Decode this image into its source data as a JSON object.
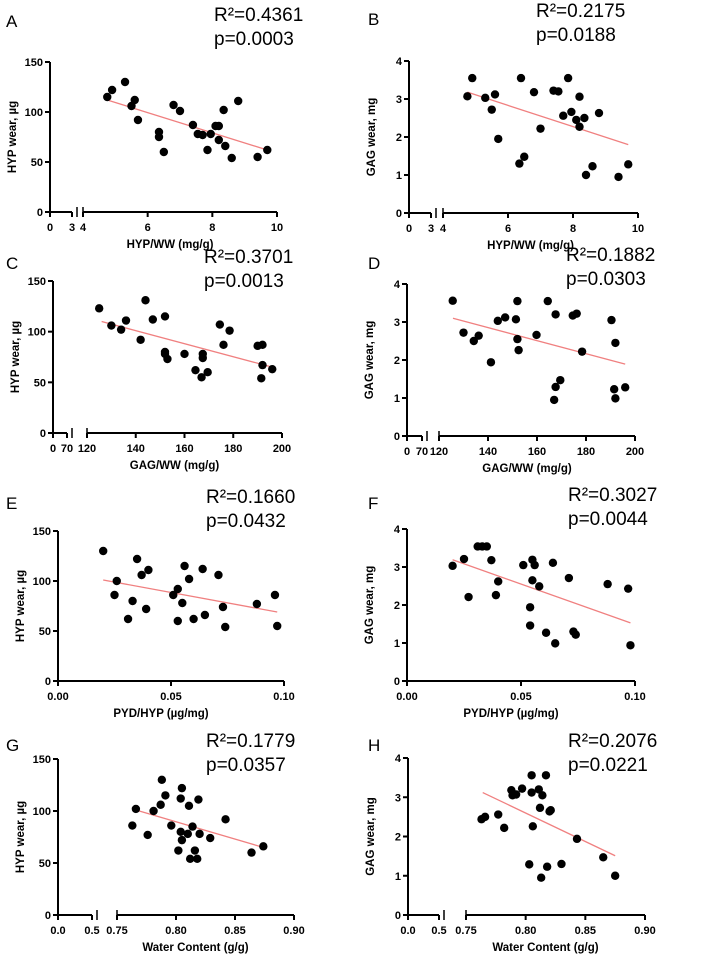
{
  "chart_data": [
    {
      "type": "scatter",
      "letter": "A",
      "r2": "R²=0.4361",
      "p": "p=0.0003",
      "xlabel": "HYP/WW (mg/g)",
      "ylabel": "HYP wear, µg",
      "xlim": [
        0,
        10
      ],
      "ylim": [
        0,
        150
      ],
      "xticks": [
        {
          "v": 0,
          "label": "0"
        },
        {
          "v": 3,
          "label": "3"
        },
        {
          "v": 4,
          "label": "4"
        },
        {
          "v": 6,
          "label": "6"
        },
        {
          "v": 8,
          "label": "8"
        },
        {
          "v": 10,
          "label": "10"
        }
      ],
      "yticks": [
        {
          "v": 0,
          "label": "0"
        },
        {
          "v": 50,
          "label": "50"
        },
        {
          "v": 100,
          "label": "100"
        },
        {
          "v": 150,
          "label": "150"
        }
      ],
      "points": [
        [
          4.75,
          115
        ],
        [
          4.9,
          122
        ],
        [
          5.3,
          130
        ],
        [
          5.5,
          106
        ],
        [
          5.6,
          112
        ],
        [
          5.7,
          92
        ],
        [
          6.35,
          80
        ],
        [
          6.35,
          75
        ],
        [
          6.5,
          60
        ],
        [
          6.8,
          107
        ],
        [
          7.0,
          101
        ],
        [
          7.4,
          87
        ],
        [
          7.55,
          78
        ],
        [
          7.7,
          77
        ],
        [
          7.85,
          62
        ],
        [
          7.95,
          78
        ],
        [
          8.1,
          86
        ],
        [
          8.2,
          86
        ],
        [
          8.2,
          72
        ],
        [
          8.35,
          102
        ],
        [
          8.4,
          66
        ],
        [
          8.6,
          54
        ],
        [
          8.8,
          111
        ],
        [
          9.4,
          55
        ],
        [
          9.7,
          62
        ]
      ],
      "fit": [
        [
          4.75,
          112
        ],
        [
          9.7,
          62
        ]
      ]
    },
    {
      "type": "scatter",
      "letter": "B",
      "r2": "R²=0.2175",
      "p": "p=0.0188",
      "xlabel": "HYP/WW (mg/g)",
      "ylabel": "GAG wear, mg",
      "xlim": [
        0,
        10
      ],
      "ylim": [
        0,
        4
      ],
      "xticks": [
        {
          "v": 0,
          "label": "0"
        },
        {
          "v": 3,
          "label": "3"
        },
        {
          "v": 4,
          "label": "4"
        },
        {
          "v": 6,
          "label": "6"
        },
        {
          "v": 8,
          "label": "8"
        },
        {
          "v": 10,
          "label": "10"
        }
      ],
      "yticks": [
        {
          "v": 0,
          "label": "0"
        },
        {
          "v": 1,
          "label": "1"
        },
        {
          "v": 2,
          "label": "2"
        },
        {
          "v": 3,
          "label": "3"
        },
        {
          "v": 4,
          "label": "4"
        }
      ],
      "points": [
        [
          4.75,
          3.07
        ],
        [
          4.9,
          3.55
        ],
        [
          5.3,
          3.03
        ],
        [
          5.5,
          2.72
        ],
        [
          5.6,
          3.12
        ],
        [
          5.7,
          1.95
        ],
        [
          6.35,
          1.3
        ],
        [
          6.4,
          3.55
        ],
        [
          6.5,
          1.48
        ],
        [
          6.8,
          3.18
        ],
        [
          7.0,
          2.22
        ],
        [
          7.4,
          3.22
        ],
        [
          7.55,
          3.2
        ],
        [
          7.7,
          2.56
        ],
        [
          7.85,
          3.55
        ],
        [
          7.95,
          2.66
        ],
        [
          8.1,
          2.45
        ],
        [
          8.2,
          3.06
        ],
        [
          8.2,
          2.27
        ],
        [
          8.35,
          2.5
        ],
        [
          8.4,
          1.0
        ],
        [
          8.6,
          1.23
        ],
        [
          8.8,
          2.63
        ],
        [
          9.4,
          0.95
        ],
        [
          9.7,
          1.28
        ]
      ],
      "fit": [
        [
          4.75,
          3.18
        ],
        [
          9.7,
          1.8
        ]
      ]
    },
    {
      "type": "scatter",
      "letter": "C",
      "r2": "R²=0.3701",
      "p": "p=0.0013",
      "xlabel": "GAG/WW (mg/g)",
      "ylabel": "HYP wear, µg",
      "xlim": [
        0,
        200
      ],
      "ylim": [
        0,
        150
      ],
      "xticks": [
        {
          "v": 0,
          "label": "0"
        },
        {
          "v": 70,
          "label": "70"
        },
        {
          "v": 120,
          "label": "120"
        },
        {
          "v": 140,
          "label": "140"
        },
        {
          "v": 160,
          "label": "160"
        },
        {
          "v": 180,
          "label": "180"
        },
        {
          "v": 200,
          "label": "200"
        }
      ],
      "yticks": [
        {
          "v": 0,
          "label": "0"
        },
        {
          "v": 50,
          "label": "50"
        },
        {
          "v": 100,
          "label": "100"
        },
        {
          "v": 150,
          "label": "150"
        }
      ],
      "points": [
        [
          125,
          123
        ],
        [
          130,
          106
        ],
        [
          134,
          102
        ],
        [
          136,
          111
        ],
        [
          142,
          92
        ],
        [
          144,
          131
        ],
        [
          147,
          112
        ],
        [
          152,
          115
        ],
        [
          152,
          80
        ],
        [
          152,
          78
        ],
        [
          153,
          73
        ],
        [
          160,
          78
        ],
        [
          164.5,
          62
        ],
        [
          167,
          55
        ],
        [
          167.5,
          78
        ],
        [
          167.5,
          74
        ],
        [
          169.5,
          60
        ],
        [
          174.5,
          107
        ],
        [
          176,
          87
        ],
        [
          178.5,
          101
        ],
        [
          190,
          86
        ],
        [
          192,
          87
        ],
        [
          192,
          67
        ],
        [
          191.5,
          54
        ],
        [
          196,
          63
        ]
      ],
      "fit": [
        [
          126,
          110
        ],
        [
          196,
          65
        ]
      ]
    },
    {
      "type": "scatter",
      "letter": "D",
      "r2": "R²=0.1882",
      "p": "p=0.0303",
      "xlabel": "GAG/WW (mg/g)",
      "ylabel": "GAG wear, mg",
      "xlim": [
        0,
        200
      ],
      "ylim": [
        0,
        4
      ],
      "xticks": [
        {
          "v": 0,
          "label": "0"
        },
        {
          "v": 70,
          "label": "70"
        },
        {
          "v": 120,
          "label": "120"
        },
        {
          "v": 140,
          "label": "140"
        },
        {
          "v": 160,
          "label": "160"
        },
        {
          "v": 180,
          "label": "180"
        },
        {
          "v": 200,
          "label": "200"
        }
      ],
      "yticks": [
        {
          "v": 0,
          "label": "0"
        },
        {
          "v": 1,
          "label": "1"
        },
        {
          "v": 2,
          "label": "2"
        },
        {
          "v": 3,
          "label": "3"
        },
        {
          "v": 4,
          "label": "4"
        }
      ],
      "points": [
        [
          125.6,
          3.56
        ],
        [
          130,
          2.72
        ],
        [
          134.2,
          2.5
        ],
        [
          136.2,
          2.64
        ],
        [
          141.2,
          1.94
        ],
        [
          144,
          3.03
        ],
        [
          147,
          3.12
        ],
        [
          151.4,
          3.07
        ],
        [
          152,
          3.55
        ],
        [
          152,
          2.55
        ],
        [
          152.5,
          2.26
        ],
        [
          159.8,
          2.66
        ],
        [
          164.4,
          3.55
        ],
        [
          167,
          0.95
        ],
        [
          167.6,
          1.29
        ],
        [
          167.6,
          3.2
        ],
        [
          169.5,
          1.47
        ],
        [
          174.6,
          3.17
        ],
        [
          176.2,
          3.22
        ],
        [
          178.4,
          2.22
        ],
        [
          190.4,
          3.05
        ],
        [
          191.5,
          1.23
        ],
        [
          192,
          2.45
        ],
        [
          192,
          0.99
        ],
        [
          196,
          1.28
        ]
      ],
      "fit": [
        [
          125.7,
          3.1
        ],
        [
          196,
          1.89
        ]
      ]
    },
    {
      "type": "scatter",
      "letter": "E",
      "r2": "R²=0.1660",
      "p": "p=0.0432",
      "xlabel": "PYD/HYP (µg/mg)",
      "ylabel": "HYP wear, µg",
      "xlim": [
        0,
        0.1
      ],
      "ylim": [
        0,
        150
      ],
      "xticks": [
        {
          "v": 0,
          "label": "0.00"
        },
        {
          "v": 0.05,
          "label": "0.05"
        },
        {
          "v": 0.1,
          "label": "0.10"
        }
      ],
      "yticks": [
        {
          "v": 0,
          "label": "0"
        },
        {
          "v": 50,
          "label": "50"
        },
        {
          "v": 100,
          "label": "100"
        },
        {
          "v": 150,
          "label": "150"
        }
      ],
      "points": [
        [
          0.02,
          130
        ],
        [
          0.025,
          86
        ],
        [
          0.026,
          100
        ],
        [
          0.031,
          62
        ],
        [
          0.033,
          80
        ],
        [
          0.035,
          122
        ],
        [
          0.037,
          106
        ],
        [
          0.039,
          72
        ],
        [
          0.04,
          111
        ],
        [
          0.051,
          86
        ],
        [
          0.053,
          92
        ],
        [
          0.053,
          60
        ],
        [
          0.055,
          78
        ],
        [
          0.056,
          115
        ],
        [
          0.058,
          102
        ],
        [
          0.06,
          62
        ],
        [
          0.064,
          112
        ],
        [
          0.065,
          66
        ],
        [
          0.071,
          106
        ],
        [
          0.073,
          74
        ],
        [
          0.074,
          54
        ],
        [
          0.088,
          77
        ],
        [
          0.096,
          86
        ],
        [
          0.097,
          55
        ]
      ],
      "fit": [
        [
          0.02,
          101
        ],
        [
          0.097,
          69
        ]
      ]
    },
    {
      "type": "scatter",
      "letter": "F",
      "r2": "R²=0.3027",
      "p": "p=0.0044",
      "xlabel": "PYD/HYP (µg/mg)",
      "ylabel": "GAG wear, mg",
      "xlim": [
        0,
        0.1
      ],
      "ylim": [
        0,
        4
      ],
      "xticks": [
        {
          "v": 0,
          "label": "0.00"
        },
        {
          "v": 0.05,
          "label": "0.05"
        },
        {
          "v": 0.1,
          "label": "0.10"
        }
      ],
      "yticks": [
        {
          "v": 0,
          "label": "0"
        },
        {
          "v": 1,
          "label": "1"
        },
        {
          "v": 2,
          "label": "2"
        },
        {
          "v": 3,
          "label": "3"
        },
        {
          "v": 4,
          "label": "4"
        }
      ],
      "points": [
        [
          0.02,
          3.03
        ],
        [
          0.025,
          3.21
        ],
        [
          0.027,
          2.21
        ],
        [
          0.031,
          3.54
        ],
        [
          0.033,
          3.54
        ],
        [
          0.035,
          3.54
        ],
        [
          0.037,
          3.18
        ],
        [
          0.039,
          2.26
        ],
        [
          0.04,
          2.62
        ],
        [
          0.051,
          3.05
        ],
        [
          0.054,
          1.94
        ],
        [
          0.054,
          1.46
        ],
        [
          0.055,
          3.19
        ],
        [
          0.055,
          2.65
        ],
        [
          0.056,
          3.05
        ],
        [
          0.058,
          2.49
        ],
        [
          0.061,
          1.27
        ],
        [
          0.064,
          3.11
        ],
        [
          0.065,
          0.99
        ],
        [
          0.071,
          2.71
        ],
        [
          0.073,
          1.3
        ],
        [
          0.074,
          1.22
        ],
        [
          0.088,
          2.55
        ],
        [
          0.097,
          2.43
        ],
        [
          0.098,
          0.94
        ]
      ],
      "fit": [
        [
          0.02,
          3.19
        ],
        [
          0.098,
          1.53
        ]
      ]
    },
    {
      "type": "scatter",
      "letter": "G",
      "r2": "R²=0.1779",
      "p": "p=0.0357",
      "xlabel": "Water Content (g/g)",
      "ylabel": "HYP wear, µg",
      "xlim": [
        0,
        0.9
      ],
      "ylim": [
        0,
        150
      ],
      "xticks": [
        {
          "v": 0,
          "label": "0.0"
        },
        {
          "v": 0.5,
          "label": "0.5"
        },
        {
          "v": 0.75,
          "label": "0.75"
        },
        {
          "v": 0.8,
          "label": "0.80"
        },
        {
          "v": 0.85,
          "label": "0.85"
        },
        {
          "v": 0.9,
          "label": "0.90"
        }
      ],
      "yticks": [
        {
          "v": 0,
          "label": "0"
        },
        {
          "v": 50,
          "label": "50"
        },
        {
          "v": 100,
          "label": "100"
        },
        {
          "v": 150,
          "label": "150"
        }
      ],
      "points": [
        [
          0.763,
          86
        ],
        [
          0.766,
          102
        ],
        [
          0.776,
          77
        ],
        [
          0.781,
          100
        ],
        [
          0.787,
          106
        ],
        [
          0.788,
          130
        ],
        [
          0.791,
          115
        ],
        [
          0.796,
          86
        ],
        [
          0.802,
          62
        ],
        [
          0.804,
          80
        ],
        [
          0.805,
          122
        ],
        [
          0.804,
          112
        ],
        [
          0.805,
          72
        ],
        [
          0.81,
          78
        ],
        [
          0.811,
          105
        ],
        [
          0.812,
          54
        ],
        [
          0.814,
          85
        ],
        [
          0.816,
          62
        ],
        [
          0.818,
          54
        ],
        [
          0.819,
          111
        ],
        [
          0.82,
          78
        ],
        [
          0.829,
          74
        ],
        [
          0.842,
          92
        ],
        [
          0.864,
          60
        ],
        [
          0.874,
          66
        ]
      ],
      "fit": [
        [
          0.766,
          101
        ],
        [
          0.877,
          64
        ]
      ]
    },
    {
      "type": "scatter",
      "letter": "H",
      "r2": "R²=0.2076",
      "p": "p=0.0221",
      "xlabel": "Water Content (g/g)",
      "ylabel": "GAG wear, mg",
      "xlim": [
        0,
        0.9
      ],
      "ylim": [
        0,
        4
      ],
      "xticks": [
        {
          "v": 0,
          "label": "0.0"
        },
        {
          "v": 0.5,
          "label": "0.5"
        },
        {
          "v": 0.75,
          "label": "0.75"
        },
        {
          "v": 0.8,
          "label": "0.80"
        },
        {
          "v": 0.85,
          "label": "0.85"
        },
        {
          "v": 0.9,
          "label": "0.90"
        }
      ],
      "yticks": [
        {
          "v": 0,
          "label": "0"
        },
        {
          "v": 1,
          "label": "1"
        },
        {
          "v": 2,
          "label": "2"
        },
        {
          "v": 3,
          "label": "3"
        },
        {
          "v": 4,
          "label": "4"
        }
      ],
      "points": [
        [
          0.763,
          2.44
        ],
        [
          0.766,
          2.5
        ],
        [
          0.777,
          2.56
        ],
        [
          0.782,
          2.22
        ],
        [
          0.788,
          3.18
        ],
        [
          0.789,
          3.05
        ],
        [
          0.792,
          3.07
        ],
        [
          0.797,
          3.22
        ],
        [
          0.803,
          1.29
        ],
        [
          0.805,
          3.56
        ],
        [
          0.805,
          3.12
        ],
        [
          0.806,
          2.26
        ],
        [
          0.811,
          3.2
        ],
        [
          0.812,
          2.73
        ],
        [
          0.813,
          0.95
        ],
        [
          0.814,
          3.05
        ],
        [
          0.817,
          3.56
        ],
        [
          0.818,
          1.23
        ],
        [
          0.82,
          2.64
        ],
        [
          0.821,
          2.67
        ],
        [
          0.83,
          1.3
        ],
        [
          0.843,
          1.94
        ],
        [
          0.865,
          1.47
        ],
        [
          0.875,
          1.0
        ]
      ],
      "fit": [
        [
          0.764,
          3.12
        ],
        [
          0.875,
          1.51
        ]
      ]
    }
  ],
  "colors": {
    "points": "#000000",
    "fit_line": "#f08080",
    "axes": "#000000"
  }
}
